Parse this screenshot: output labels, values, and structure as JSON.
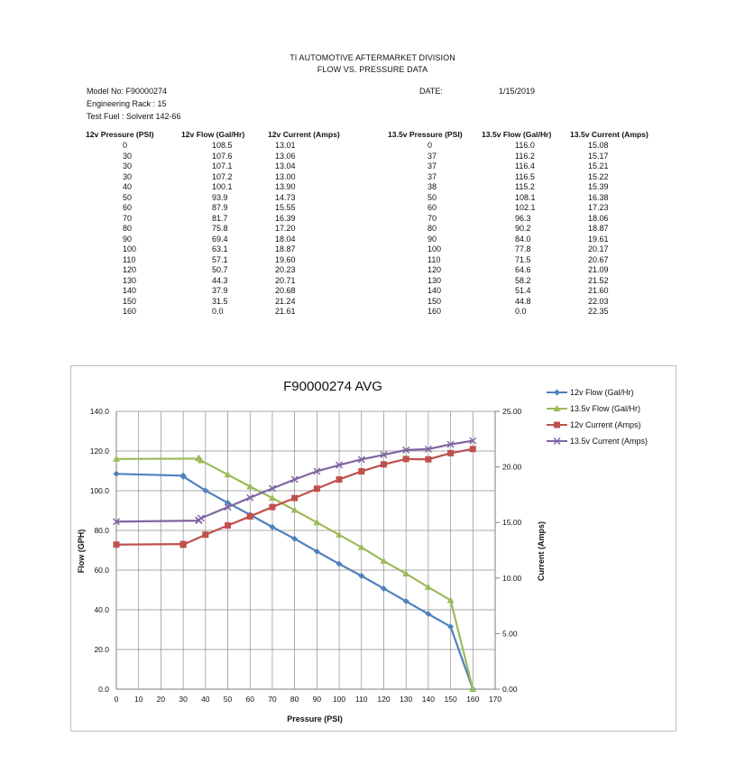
{
  "header": {
    "company": "TI AUTOMOTIVE AFTERMARKET DIVISION",
    "subtitle": "FLOW  VS.  PRESSURE DATA"
  },
  "meta": {
    "model": "Model No: F90000274",
    "rack": "Engineering Rack : 15",
    "fuel": "Test Fuel : Solvent 142-66",
    "date_label": "DATE:",
    "date_value": "1/15/2019"
  },
  "table12": {
    "headers": [
      "12v Pressure (PSI)",
      "12v Flow (Gal/Hr)",
      "12v Current (Amps)"
    ],
    "rows": [
      [
        "0",
        "108.5",
        "13.01"
      ],
      [
        "30",
        "107.6",
        "13.06"
      ],
      [
        "30",
        "107.1",
        "13.04"
      ],
      [
        "30",
        "107.2",
        "13.00"
      ],
      [
        "40",
        "100.1",
        "13.90"
      ],
      [
        "50",
        "93.9",
        "14.73"
      ],
      [
        "60",
        "87.9",
        "15.55"
      ],
      [
        "70",
        "81.7",
        "16.39"
      ],
      [
        "80",
        "75.8",
        "17.20"
      ],
      [
        "90",
        "69.4",
        "18.04"
      ],
      [
        "100",
        "63.1",
        "18.87"
      ],
      [
        "110",
        "57.1",
        "19.60"
      ],
      [
        "120",
        "50.7",
        "20.23"
      ],
      [
        "130",
        "44.3",
        "20.71"
      ],
      [
        "140",
        "37.9",
        "20.68"
      ],
      [
        "150",
        "31.5",
        "21.24"
      ],
      [
        "160",
        "0.0",
        "21.61"
      ]
    ]
  },
  "table135": {
    "headers": [
      "13.5v Pressure (PSI)",
      "13.5v Flow (Gal/Hr)",
      "13.5v Current (Amps)"
    ],
    "rows": [
      [
        "0",
        "116.0",
        "15.08"
      ],
      [
        "37",
        "116.2",
        "15.17"
      ],
      [
        "37",
        "116.4",
        "15.21"
      ],
      [
        "37",
        "116.5",
        "15.22"
      ],
      [
        "38",
        "115.2",
        "15.39"
      ],
      [
        "50",
        "108.1",
        "16.38"
      ],
      [
        "60",
        "102.1",
        "17.23"
      ],
      [
        "70",
        "96.3",
        "18.06"
      ],
      [
        "80",
        "90.2",
        "18.87"
      ],
      [
        "90",
        "84.0",
        "19.61"
      ],
      [
        "100",
        "77.8",
        "20.17"
      ],
      [
        "110",
        "71.5",
        "20.67"
      ],
      [
        "120",
        "64.6",
        "21.09"
      ],
      [
        "130",
        "58.2",
        "21.52"
      ],
      [
        "140",
        "51.4",
        "21.60"
      ],
      [
        "150",
        "44.8",
        "22.03"
      ],
      [
        "160",
        "0.0",
        "22.35"
      ]
    ]
  },
  "chart_data": {
    "type": "line",
    "title": "F90000274 AVG",
    "xlabel": "Pressure (PSI)",
    "ylabel": "Flow (GPH)",
    "y2label": "Current (Amps)",
    "xlim": [
      0,
      170
    ],
    "ylim": [
      0,
      140
    ],
    "y2lim": [
      0,
      25
    ],
    "x_ticks": [
      "0",
      "10",
      "20",
      "30",
      "40",
      "50",
      "60",
      "70",
      "80",
      "90",
      "100",
      "110",
      "120",
      "130",
      "140",
      "150",
      "160",
      "170"
    ],
    "y_ticks": [
      "0.0",
      "20.0",
      "40.0",
      "60.0",
      "80.0",
      "100.0",
      "120.0",
      "140.0"
    ],
    "y2_ticks": [
      "0.00",
      "5.00",
      "10.00",
      "15.00",
      "20.00",
      "25.00"
    ],
    "grid": true,
    "legend": "right",
    "series": [
      {
        "name": "12v Flow (Gal/Hr)",
        "axis": "left",
        "color": "#4f81bd",
        "marker": "diamond",
        "x": [
          0,
          30,
          30,
          30,
          40,
          50,
          60,
          70,
          80,
          90,
          100,
          110,
          120,
          130,
          140,
          150,
          160
        ],
        "y": [
          108.5,
          107.6,
          107.1,
          107.2,
          100.1,
          93.9,
          87.9,
          81.7,
          75.8,
          69.4,
          63.1,
          57.1,
          50.7,
          44.3,
          37.9,
          31.5,
          0.0
        ]
      },
      {
        "name": "13.5v Flow (Gal/Hr)",
        "axis": "left",
        "color": "#9bbb59",
        "marker": "triangle",
        "x": [
          0,
          37,
          37,
          37,
          38,
          50,
          60,
          70,
          80,
          90,
          100,
          110,
          120,
          130,
          140,
          150,
          160
        ],
        "y": [
          116.0,
          116.2,
          116.4,
          116.5,
          115.2,
          108.1,
          102.1,
          96.3,
          90.2,
          84.0,
          77.8,
          71.5,
          64.6,
          58.2,
          51.4,
          44.8,
          0.0
        ]
      },
      {
        "name": "12v Current (Amps)",
        "axis": "right",
        "color": "#c0504d",
        "marker": "square",
        "x": [
          0,
          30,
          30,
          30,
          40,
          50,
          60,
          70,
          80,
          90,
          100,
          110,
          120,
          130,
          140,
          150,
          160
        ],
        "y": [
          13.01,
          13.06,
          13.04,
          13.0,
          13.9,
          14.73,
          15.55,
          16.39,
          17.2,
          18.04,
          18.87,
          19.6,
          20.23,
          20.71,
          20.68,
          21.24,
          21.61
        ]
      },
      {
        "name": "13.5v Current (Amps)",
        "axis": "right",
        "color": "#8064a2",
        "marker": "x",
        "x": [
          0,
          37,
          37,
          37,
          38,
          50,
          60,
          70,
          80,
          90,
          100,
          110,
          120,
          130,
          140,
          150,
          160
        ],
        "y": [
          15.08,
          15.17,
          15.21,
          15.22,
          15.39,
          16.38,
          17.23,
          18.06,
          18.87,
          19.61,
          20.17,
          20.67,
          21.09,
          21.52,
          21.6,
          22.03,
          22.35
        ]
      }
    ]
  }
}
